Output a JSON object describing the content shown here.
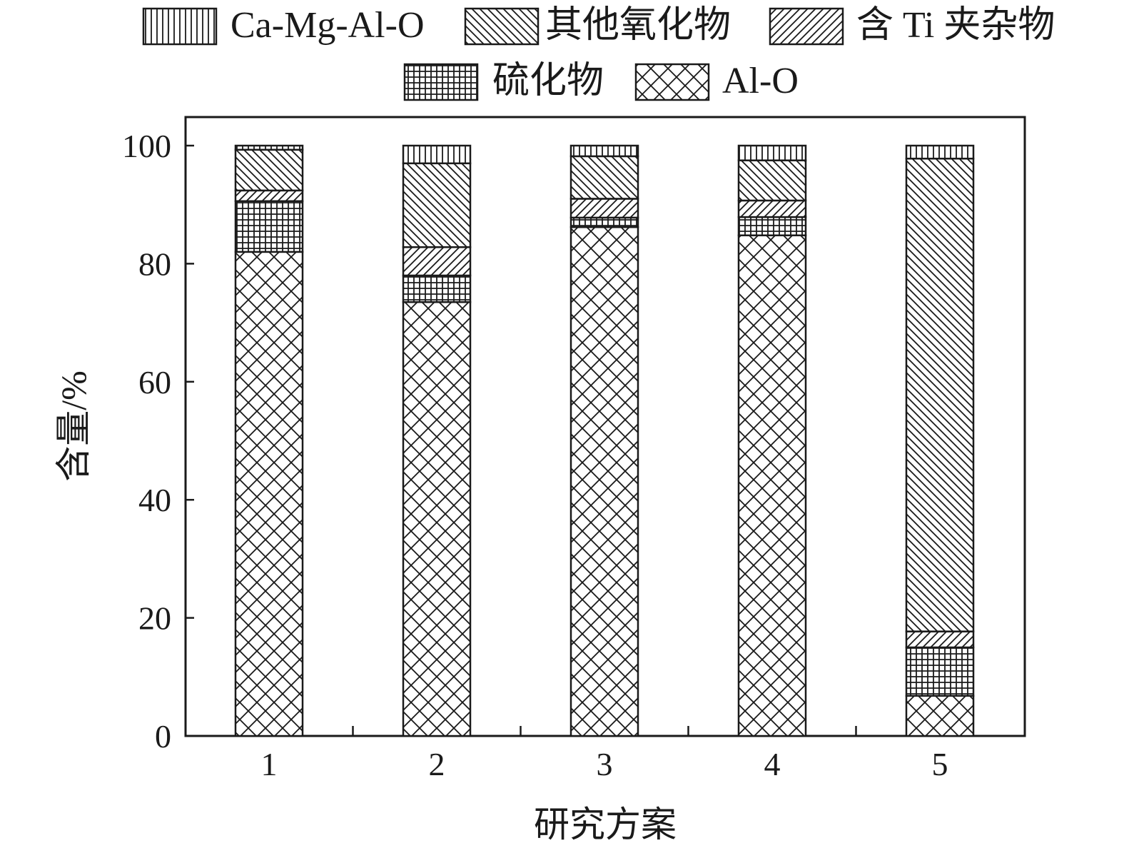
{
  "chart_data": {
    "type": "bar",
    "stacked": true,
    "categories": [
      "1",
      "2",
      "3",
      "4",
      "5"
    ],
    "series": [
      {
        "name": "Al-O",
        "pattern": "crosshatch-diagonal",
        "values": [
          82,
          73.5,
          86.2,
          84.8,
          6.8
        ]
      },
      {
        "name": "硫化物",
        "pattern": "grid",
        "values": [
          8.6,
          4.5,
          1.6,
          3.1,
          8.2
        ]
      },
      {
        "name": "含 Ti 夹杂物",
        "pattern": "diagonal-forward",
        "values": [
          1.8,
          4.8,
          3.2,
          2.8,
          2.7
        ]
      },
      {
        "name": "其他氧化物",
        "pattern": "diagonal-backward",
        "values": [
          6.9,
          14.2,
          7.2,
          6.8,
          80.1
        ]
      },
      {
        "name": "Ca-Mg-Al-O",
        "pattern": "vertical",
        "values": [
          0.7,
          3.0,
          1.8,
          2.5,
          2.2
        ]
      }
    ],
    "legend_order": [
      "Ca-Mg-Al-O",
      "其他氧化物",
      "含 Ti 夹杂物",
      "硫化物",
      "Al-O"
    ],
    "title": "",
    "xlabel": "研究方案",
    "ylabel": "含量/%",
    "ylim": [
      0,
      100
    ],
    "yticks": [
      0,
      20,
      40,
      60,
      80,
      100
    ],
    "grid": false,
    "legend_position": "top",
    "colors": {
      "ink": "#1a1a1a",
      "fill": "#ffffff"
    }
  }
}
